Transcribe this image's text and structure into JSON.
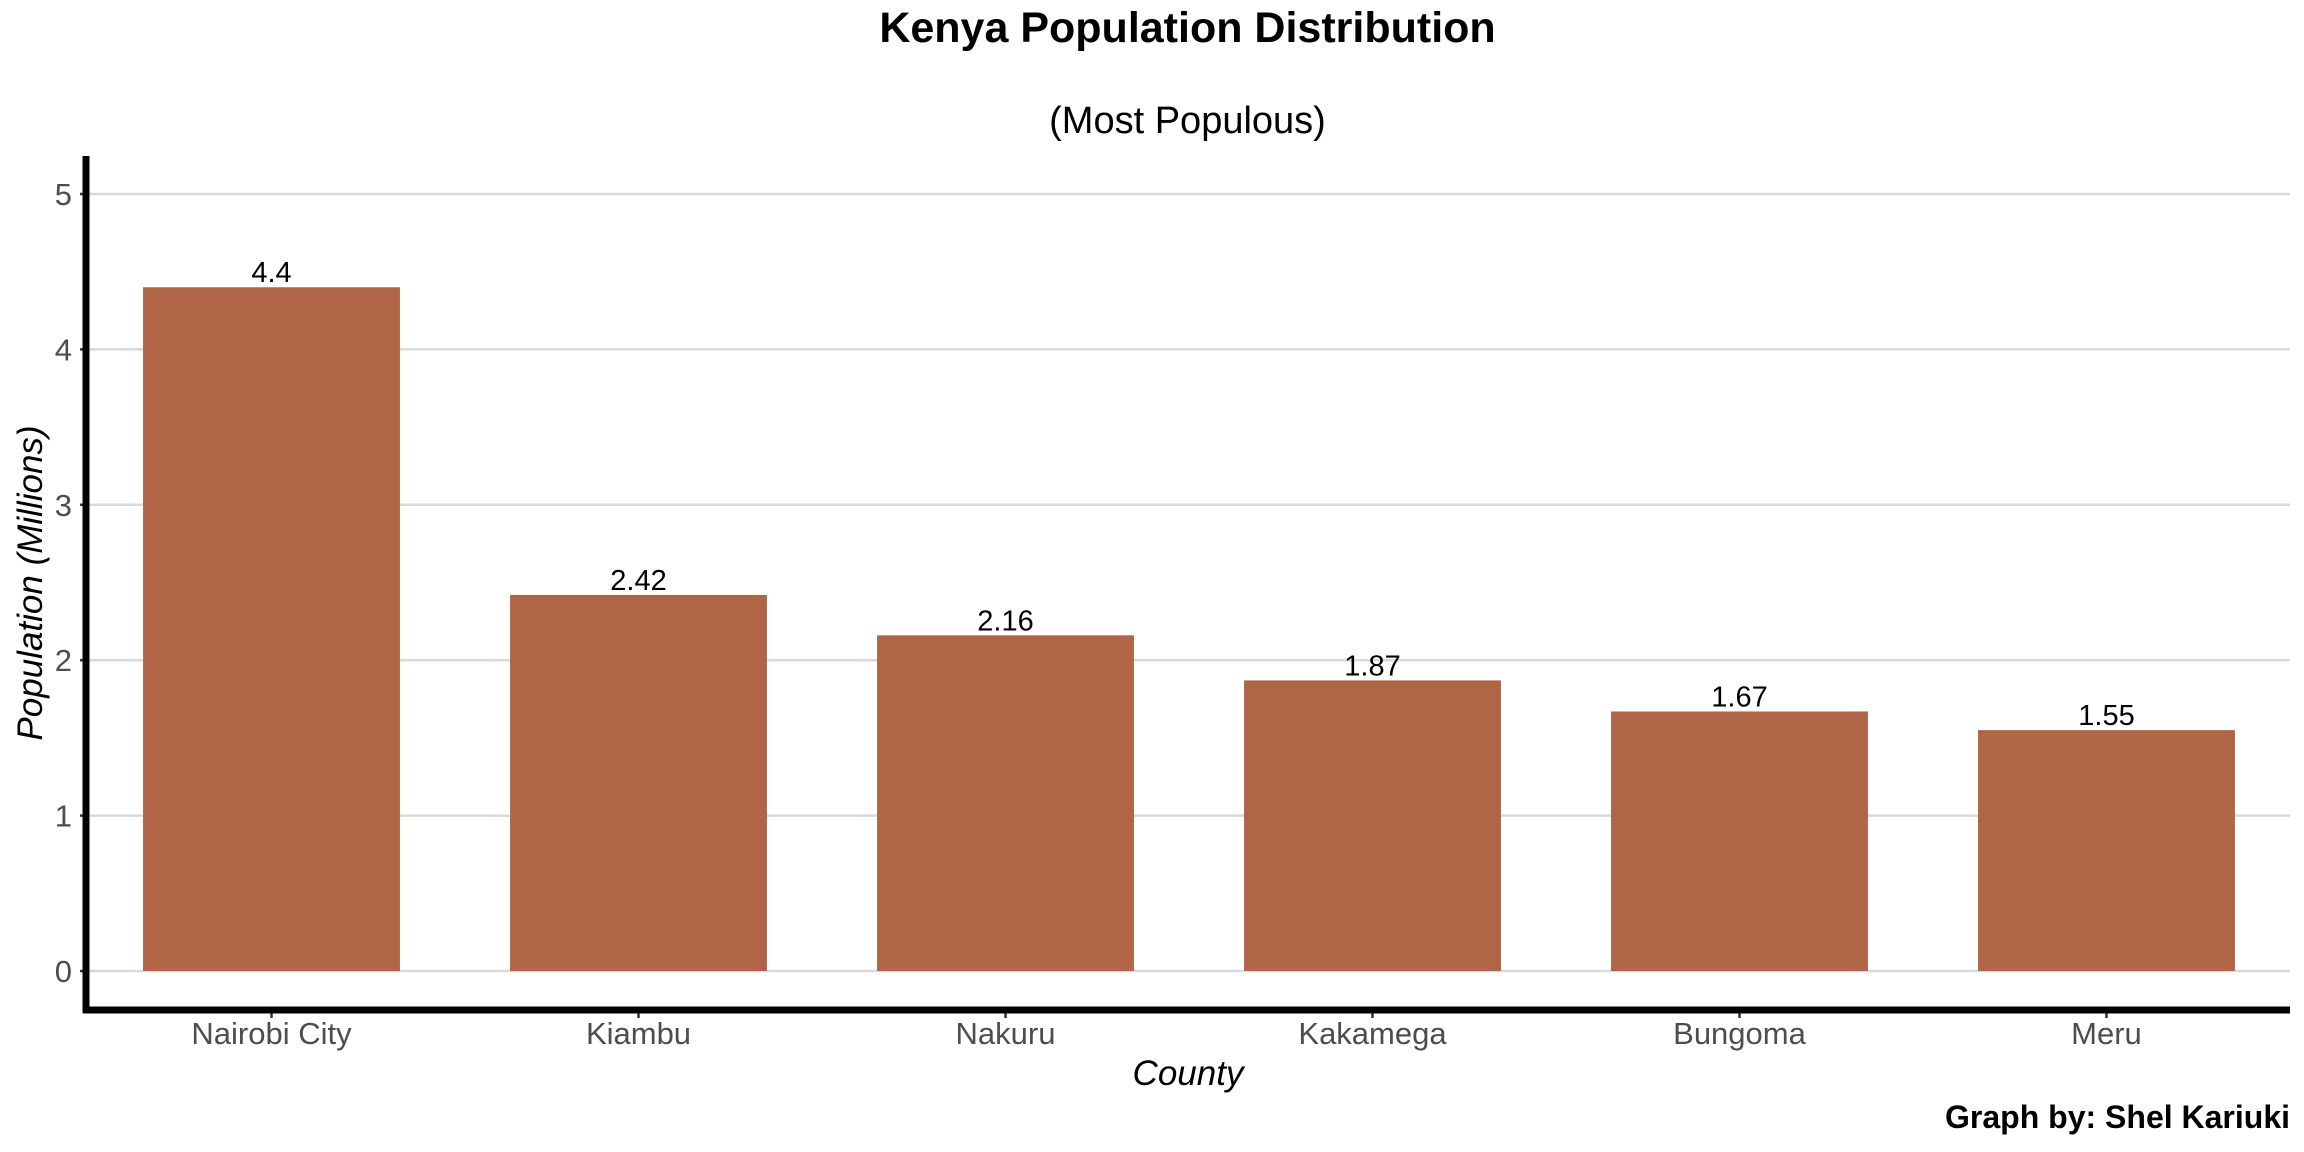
{
  "chart_data": {
    "type": "bar",
    "title": "Kenya Population Distribution",
    "subtitle": "(Most Populous)",
    "xlabel": "County",
    "ylabel": "Population (Millions)",
    "caption": "Graph by: Shel Kariuki",
    "categories": [
      "Nairobi City",
      "Kiambu",
      "Nakuru",
      "Kakamega",
      "Bungoma",
      "Meru"
    ],
    "values": [
      4.4,
      2.42,
      2.16,
      1.87,
      1.67,
      1.55
    ],
    "data_labels": [
      "4.4",
      "2.42",
      "2.16",
      "1.87",
      "1.67",
      "1.55"
    ],
    "ylim": [
      0,
      5
    ],
    "y_ticks": [
      0,
      1,
      2,
      3,
      4,
      5
    ],
    "grid": "horizontal",
    "legend": "none",
    "bar_color": "#b06646"
  }
}
